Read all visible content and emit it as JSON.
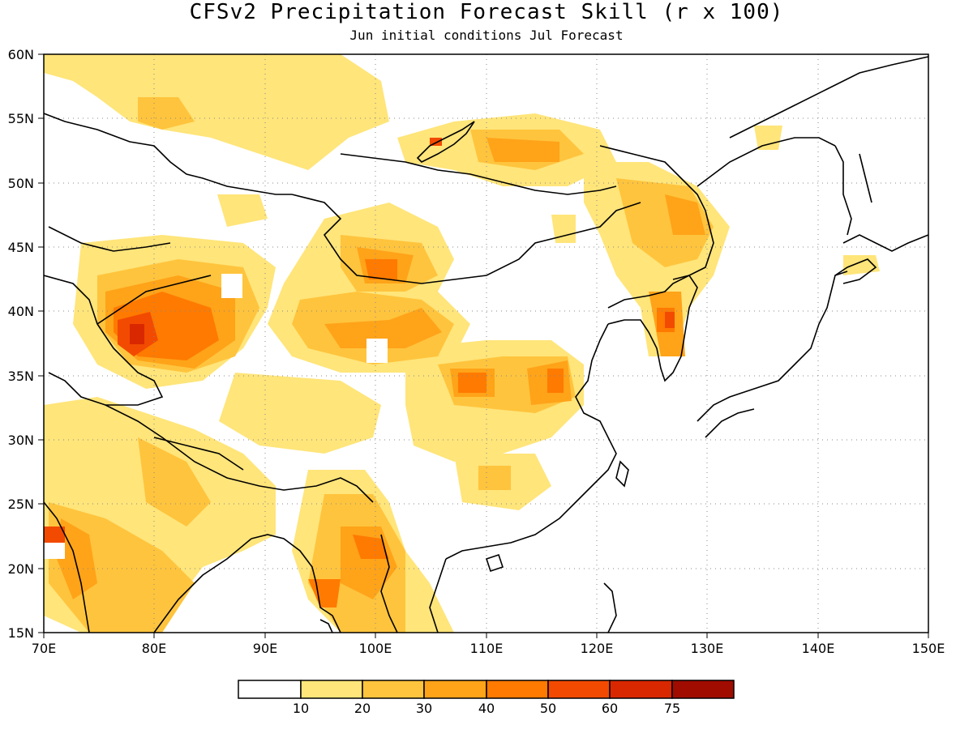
{
  "title": "CFSv2 Precipitation Forecast Skill (r x 100)",
  "subtitle": "Jun initial conditions  Jul Forecast",
  "map": {
    "lon_range": [
      70,
      150
    ],
    "lat_range": [
      15,
      60
    ],
    "lon_ticks": [
      "70E",
      "80E",
      "90E",
      "100E",
      "110E",
      "120E",
      "130E",
      "140E",
      "150E"
    ],
    "lat_ticks": [
      "15N",
      "20N",
      "25N",
      "30N",
      "35N",
      "40N",
      "45N",
      "50N",
      "55N",
      "60N"
    ],
    "grid": "dotted",
    "coastlines": true,
    "colors": {
      "c1": "#ffe57a",
      "c2": "#ffc43d",
      "c3": "#ffa319",
      "c4": "#ff7a00",
      "c5": "#f24a00",
      "c6": "#d92800"
    }
  },
  "colorbar": {
    "labels": [
      "10",
      "20",
      "30",
      "40",
      "50",
      "60",
      "75"
    ],
    "colors": [
      "#ffffff",
      "#ffe57a",
      "#ffc43d",
      "#ffa319",
      "#ff7a00",
      "#f24a00",
      "#d92800",
      "#a00c00"
    ]
  }
}
